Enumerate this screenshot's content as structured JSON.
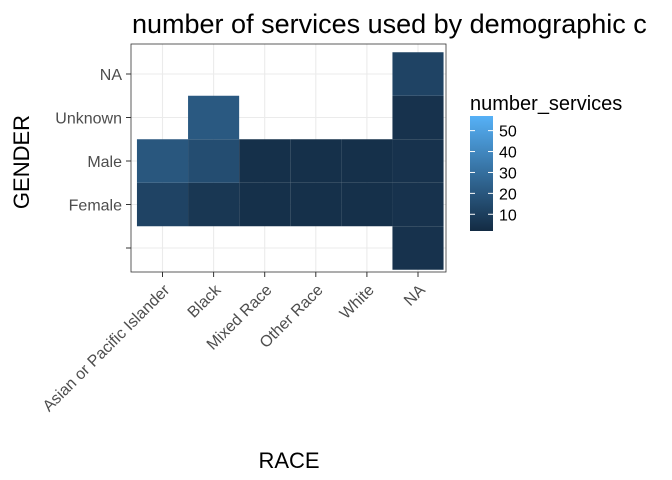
{
  "chart_data": {
    "type": "heatmap",
    "title": "number of services used by demographic c",
    "xlabel": "RACE",
    "ylabel": "GENDER",
    "x_categories": [
      "Asian or Pacific Islander",
      "Black",
      "Mixed Race",
      "Other Race",
      "White",
      "NA"
    ],
    "y_categories": [
      "",
      "Female",
      "Male",
      "Unknown",
      "NA"
    ],
    "cells": [
      {
        "x": "Asian or Pacific Islander",
        "y": "Female",
        "value": 12
      },
      {
        "x": "Asian or Pacific Islander",
        "y": "Male",
        "value": 20
      },
      {
        "x": "Black",
        "y": "Female",
        "value": 7
      },
      {
        "x": "Black",
        "y": "Male",
        "value": 16
      },
      {
        "x": "Black",
        "y": "Unknown",
        "value": 21
      },
      {
        "x": "Mixed Race",
        "y": "Female",
        "value": 4
      },
      {
        "x": "Mixed Race",
        "y": "Male",
        "value": 4
      },
      {
        "x": "Other Race",
        "y": "Female",
        "value": 4
      },
      {
        "x": "Other Race",
        "y": "Male",
        "value": 4
      },
      {
        "x": "White",
        "y": "Female",
        "value": 4
      },
      {
        "x": "White",
        "y": "Male",
        "value": 4
      },
      {
        "x": "NA",
        "y": "",
        "value": 5
      },
      {
        "x": "NA",
        "y": "Female",
        "value": 5
      },
      {
        "x": "NA",
        "y": "Male",
        "value": 5
      },
      {
        "x": "NA",
        "y": "Unknown",
        "value": 5
      },
      {
        "x": "NA",
        "y": "NA",
        "value": 12
      }
    ],
    "legend": {
      "title": "number_services",
      "ticks": [
        10,
        20,
        30,
        40,
        50
      ],
      "range": [
        2,
        57
      ],
      "low_color": "#132b43",
      "high_color": "#56b1f7",
      "placement": "right"
    },
    "grid": true
  }
}
